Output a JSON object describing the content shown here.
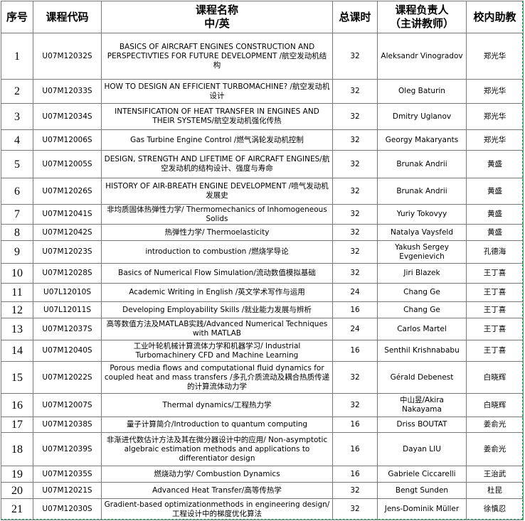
{
  "table": {
    "header": [
      [
        "序号"
      ],
      [
        "课程代码"
      ],
      [
        "课程名称",
        "中/英"
      ],
      [
        "总课时"
      ],
      [
        "课程负责人",
        "（主讲教师）"
      ],
      [
        "校内助教"
      ]
    ],
    "rows": [
      [
        1,
        "U07M12032S",
        "BASICS OF AIRCRAFT ENGINES CONSTRUCTION AND PERSPECTIVTIES FOR FUTURE DEVELOPMENT /航空发动机结构",
        32,
        "Aleksandr Vinogradov",
        "郑光华"
      ],
      [
        2,
        "U07M12033S",
        "HOW TO DESIGN AN EFFICIENT TURBOMACHINE? /航空发动机设计",
        32,
        "Oleg  Baturin",
        "郑光华"
      ],
      [
        3,
        "U07M12034S",
        "INTENSIFICATION OF HEAT TRANSFER IN ENGINES AND THEIR SYSTEMS/航空发动机强化传热",
        32,
        "Dmitry Uglanov",
        "郑光华"
      ],
      [
        4,
        "U07M12006S",
        "Gas Turbine Engine Control /燃气涡轮发动机控制",
        32,
        "Georgy Makaryants",
        "郑光华"
      ],
      [
        5,
        "U07M12005S",
        "DESIGN, STRENGTH AND LIFETIME OF AIRCRAFT ENGINES/航空发动机的结构设计、强度与寿命",
        32,
        "Brunak Andrii",
        "黄盛"
      ],
      [
        6,
        "U07M12026S",
        "HISTORY OF AIR-BREATH ENGINE DEVELOPMENT /喷气发动机发展史",
        32,
        "Brunak Andrii",
        "黄盛"
      ],
      [
        7,
        "U07M12041S",
        "非均质固体热弹性力学/ Thermomechanics of Inhomogeneous Solids",
        32,
        "Yuriy Tokovyy",
        "黄盛"
      ],
      [
        8,
        "U07M12042S",
        "热弹性力学/ Thermoelasticity",
        32,
        "Natalya Vaysfeld",
        "黄盛"
      ],
      [
        9,
        "U07M12023S",
        "introduction to combustion /燃烧学导论",
        32,
        "Yakush Sergey Evgenievich",
        "孔德海"
      ],
      [
        10,
        "U07M12028S",
        "Basics of Numerical Flow Simulation/流动数值模拟基础",
        32,
        "Jiri Blazek",
        "王丁喜"
      ],
      [
        11,
        "U07L12010S",
        "Academic Writing in English /英文学术写作与运用",
        24,
        "Chang Ge",
        "王丁喜"
      ],
      [
        12,
        "U07L12011S",
        "Developing Employability Skills /就业能力发展与辨析",
        16,
        "Chang Ge",
        "王丁喜"
      ],
      [
        13,
        "U07M12037S",
        "高等数值方法及MATLAB实践/Advanced Numerical Techniques with MATLAB",
        24,
        "Carlos Martel",
        "王丁喜"
      ],
      [
        14,
        "U07M12040S",
        "工业叶轮机械计算流体力学和机器学习/ Industrial Turbomachinery CFD and Machine Learning",
        16,
        "Senthil Krishnababu",
        "王丁喜"
      ],
      [
        15,
        "U07M12022S",
        "Porous media flows and computational fluid dynamics for coupled heat and mass transfers /多孔介质流动及耦合热质传递的计算流体动力学",
        32,
        "Gérald Debenest",
        "白晓辉"
      ],
      [
        16,
        "U07M12007S",
        "Thermal dynamics/工程热力学",
        32,
        "中山昱/Akira Nakayama",
        "白晓辉"
      ],
      [
        17,
        "U07M12038S",
        "量子计算简介/Introduction to quantum computing",
        16,
        "Driss  BOUTAT",
        "姜俞光"
      ],
      [
        18,
        "U07M12039S",
        "非渐进代数估计方法及其在微分器设计中的应用/ Non-asymptotic algebraic estimation methods and applications to differentiator design",
        16,
        "Dayan LIU",
        "姜俞光"
      ],
      [
        19,
        "U07M12035S",
        "燃烧动力学/ Combustion Dynamics",
        16,
        "Gabriele Ciccarelli",
        "王治武"
      ],
      [
        20,
        "U07M12021S",
        "Advanced Heat Transfer/高等传热学",
        32,
        "Bengt Sunden",
        "杜昆"
      ],
      [
        21,
        "U07M12030S",
        "Gradient-based optimizationmethods in engineering design/工程设计中的梯度优化算法",
        32,
        "Jens-Dominik Müller",
        "徐慎忍"
      ]
    ]
  }
}
